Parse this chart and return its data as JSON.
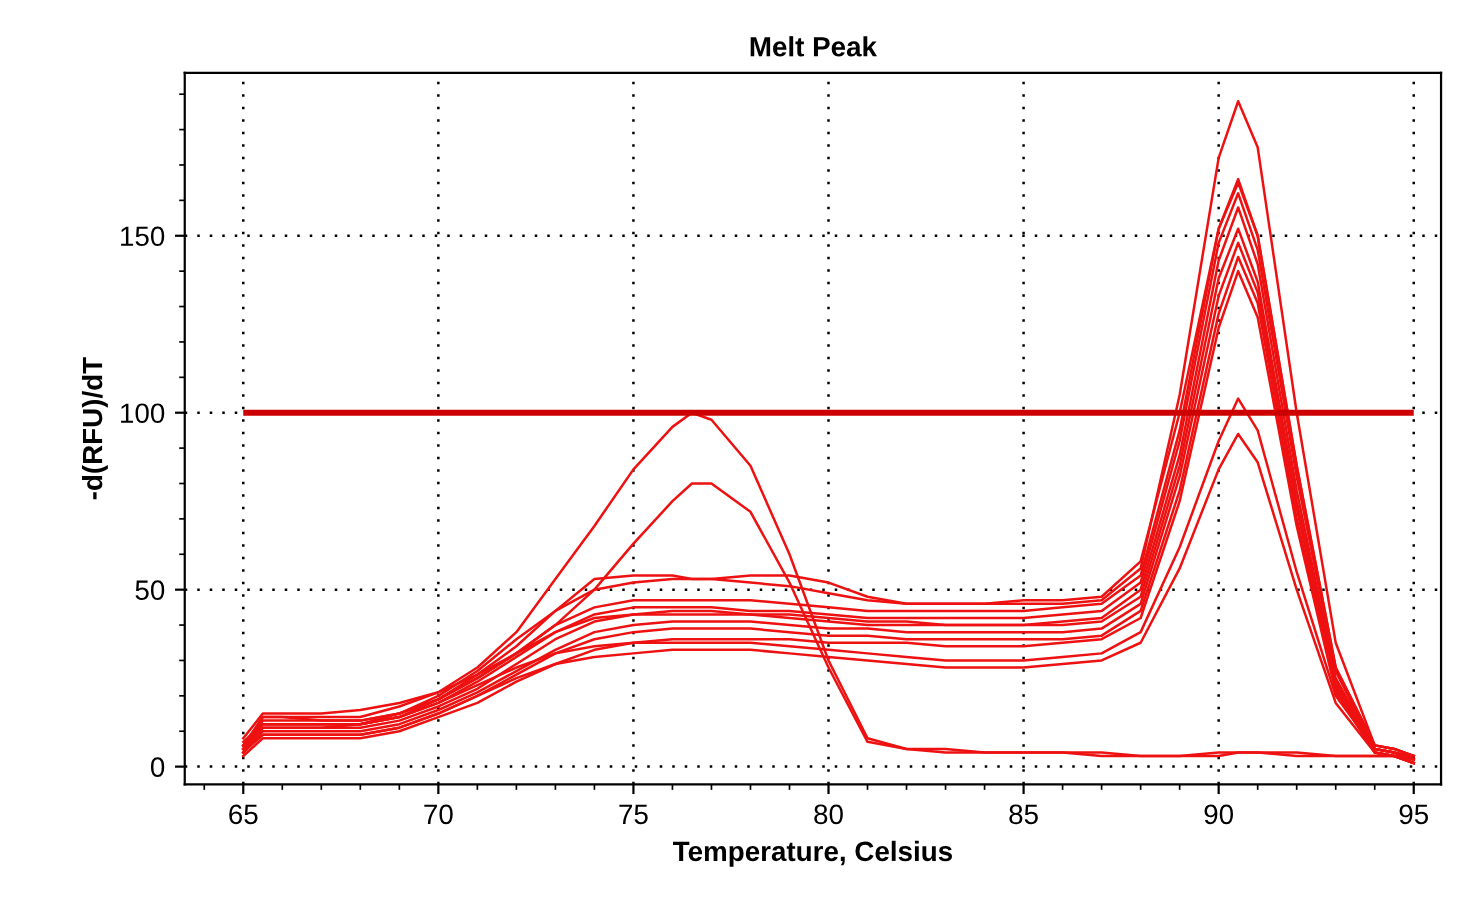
{
  "chart_data": {
    "type": "line",
    "title": "Melt Peak",
    "xlabel": "Temperature, Celsius",
    "ylabel": "-d(RFU)/dT",
    "x": [
      65,
      65.5,
      66,
      67,
      68,
      69,
      70,
      71,
      72,
      73,
      74,
      75,
      76,
      76.5,
      77,
      78,
      79,
      80,
      81,
      82,
      83,
      84,
      85,
      86,
      87,
      88,
      89,
      90,
      90.5,
      91,
      92,
      93,
      94,
      94.5,
      95
    ],
    "xlim": [
      63.5,
      95.7
    ],
    "xticks": [
      65,
      70,
      75,
      80,
      85,
      90,
      95
    ],
    "ylim": [
      -5,
      196
    ],
    "yticks": [
      0,
      50,
      100,
      150
    ],
    "grid": true,
    "legend": false,
    "marker": "none",
    "line_style": "solid",
    "ref_lines": [
      {
        "axis": "y",
        "value": 100,
        "color": "#cc0000",
        "line_style": "solid"
      }
    ],
    "series": [
      {
        "color": "#ee1111",
        "values": [
          5,
          14,
          14,
          13,
          13,
          15,
          20,
          27,
          36,
          44,
          50,
          52,
          53,
          53,
          53,
          52,
          51,
          49,
          47,
          46,
          46,
          46,
          46,
          46,
          47,
          56,
          105,
          172,
          188,
          175,
          100,
          35,
          6,
          5,
          3
        ]
      },
      {
        "color": "#ee1111",
        "values": [
          6,
          13,
          13,
          13,
          13,
          15,
          19,
          25,
          32,
          40,
          45,
          47,
          47,
          47,
          47,
          47,
          46,
          45,
          44,
          44,
          44,
          44,
          44,
          45,
          46,
          54,
          95,
          152,
          166,
          150,
          85,
          28,
          6,
          5,
          3
        ]
      },
      {
        "color": "#ee1111",
        "values": [
          7,
          12,
          12,
          12,
          12,
          14,
          18,
          24,
          31,
          38,
          43,
          45,
          45,
          45,
          45,
          44,
          44,
          43,
          42,
          42,
          42,
          42,
          42,
          43,
          44,
          52,
          92,
          148,
          162,
          146,
          82,
          27,
          5,
          4,
          2
        ]
      },
      {
        "color": "#ee1111",
        "values": [
          4,
          11,
          11,
          11,
          11,
          13,
          17,
          22,
          29,
          36,
          41,
          43,
          43,
          43,
          43,
          43,
          42,
          41,
          40,
          40,
          40,
          40,
          40,
          41,
          42,
          50,
          88,
          143,
          158,
          142,
          78,
          25,
          5,
          4,
          2
        ]
      },
      {
        "color": "#ee1111",
        "values": [
          8,
          15,
          15,
          15,
          16,
          18,
          21,
          26,
          32,
          38,
          42,
          43,
          44,
          44,
          44,
          43,
          43,
          42,
          41,
          41,
          40,
          40,
          40,
          40,
          41,
          48,
          85,
          138,
          152,
          137,
          75,
          24,
          5,
          4,
          3
        ]
      },
      {
        "color": "#ee1111",
        "values": [
          5,
          10,
          10,
          10,
          10,
          12,
          16,
          21,
          27,
          33,
          38,
          40,
          41,
          41,
          41,
          41,
          40,
          39,
          39,
          38,
          38,
          38,
          38,
          38,
          39,
          46,
          82,
          133,
          148,
          134,
          73,
          23,
          4,
          3,
          1
        ]
      },
      {
        "color": "#ee1111",
        "values": [
          4,
          9,
          9,
          9,
          9,
          11,
          15,
          20,
          26,
          32,
          36,
          38,
          39,
          39,
          39,
          39,
          38,
          37,
          37,
          36,
          36,
          36,
          36,
          36,
          37,
          44,
          78,
          128,
          144,
          131,
          70,
          22,
          4,
          3,
          1
        ]
      },
      {
        "color": "#ee1111",
        "values": [
          3,
          8,
          8,
          8,
          8,
          10,
          14,
          18,
          24,
          29,
          33,
          35,
          36,
          36,
          36,
          36,
          36,
          35,
          35,
          35,
          34,
          34,
          34,
          35,
          36,
          42,
          75,
          124,
          140,
          127,
          68,
          21,
          4,
          3,
          1
        ]
      },
      {
        "color": "#ee1111",
        "values": [
          6,
          12,
          12,
          12,
          12,
          14,
          18,
          23,
          28,
          32,
          34,
          35,
          35,
          35,
          35,
          35,
          34,
          33,
          32,
          31,
          30,
          30,
          30,
          31,
          32,
          38,
          62,
          92,
          104,
          95,
          55,
          20,
          5,
          4,
          2
        ]
      },
      {
        "color": "#ee1111",
        "values": [
          5,
          9,
          9,
          9,
          9,
          11,
          15,
          20,
          25,
          29,
          31,
          32,
          33,
          33,
          33,
          33,
          32,
          31,
          30,
          29,
          28,
          28,
          28,
          29,
          30,
          35,
          56,
          84,
          94,
          86,
          50,
          18,
          4,
          3,
          1
        ]
      },
      {
        "color": "#ee1111",
        "values": [
          6,
          14,
          14,
          14,
          14,
          17,
          21,
          28,
          38,
          53,
          68,
          84,
          96,
          100,
          98,
          85,
          60,
          30,
          8,
          5,
          5,
          4,
          4,
          4,
          4,
          3,
          3,
          4,
          4,
          4,
          4,
          3,
          3,
          3,
          3
        ]
      },
      {
        "color": "#ee1111",
        "values": [
          5,
          12,
          12,
          12,
          12,
          15,
          19,
          25,
          32,
          40,
          50,
          63,
          75,
          80,
          80,
          72,
          52,
          28,
          7,
          5,
          4,
          4,
          4,
          4,
          3,
          3,
          3,
          3,
          4,
          4,
          3,
          3,
          3,
          3,
          2
        ]
      },
      {
        "color": "#ee1111",
        "values": [
          4,
          11,
          11,
          11,
          12,
          14,
          19,
          26,
          34,
          44,
          53,
          54,
          54,
          53,
          53,
          54,
          54,
          52,
          48,
          46,
          46,
          46,
          47,
          47,
          48,
          58,
          100,
          152,
          165,
          150,
          85,
          28,
          6,
          5,
          3
        ]
      }
    ]
  }
}
